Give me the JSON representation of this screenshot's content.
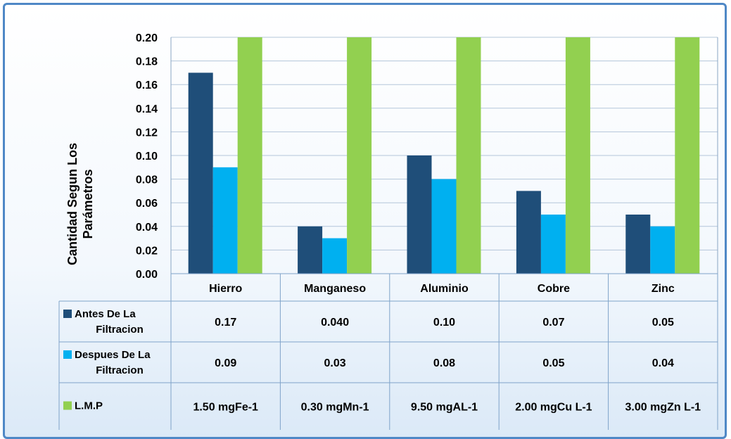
{
  "chart_data": {
    "type": "bar",
    "ylabel": "Cantidad Segun Los Parámetros",
    "ylim": [
      0,
      0.2
    ],
    "yticks": [
      "0.00",
      "0.02",
      "0.04",
      "0.06",
      "0.08",
      "0.10",
      "0.12",
      "0.14",
      "0.16",
      "0.18",
      "0.20"
    ],
    "grid": true,
    "legend_position": "table-left",
    "categories": [
      "Hierro",
      "Manganeso",
      "Aluminio",
      "Cobre",
      "Zinc"
    ],
    "series": [
      {
        "name_lines": [
          "Antes De La",
          "Filtracion"
        ],
        "color": "#1f4e79",
        "values": [
          0.17,
          0.04,
          0.1,
          0.07,
          0.05
        ],
        "table_labels": [
          "0.17",
          "0.040",
          "0.10",
          "0.07",
          "0.05"
        ]
      },
      {
        "name_lines": [
          "Despues De La",
          "Filtracion"
        ],
        "color": "#00b0f0",
        "values": [
          0.09,
          0.03,
          0.08,
          0.05,
          0.04
        ],
        "table_labels": [
          "0.09",
          "0.03",
          "0.08",
          "0.05",
          "0.04"
        ]
      },
      {
        "name_lines": [
          "L.M.P"
        ],
        "color": "#92d050",
        "values": [
          1.5,
          0.3,
          9.5,
          2.0,
          3.0
        ],
        "table_labels": [
          "1.50 mgFe-1",
          "0.30 mgMn-1",
          "9.50 mgAL-1",
          "2.00 mgCu L-1",
          "3.00 mgZn L-1"
        ]
      }
    ]
  }
}
